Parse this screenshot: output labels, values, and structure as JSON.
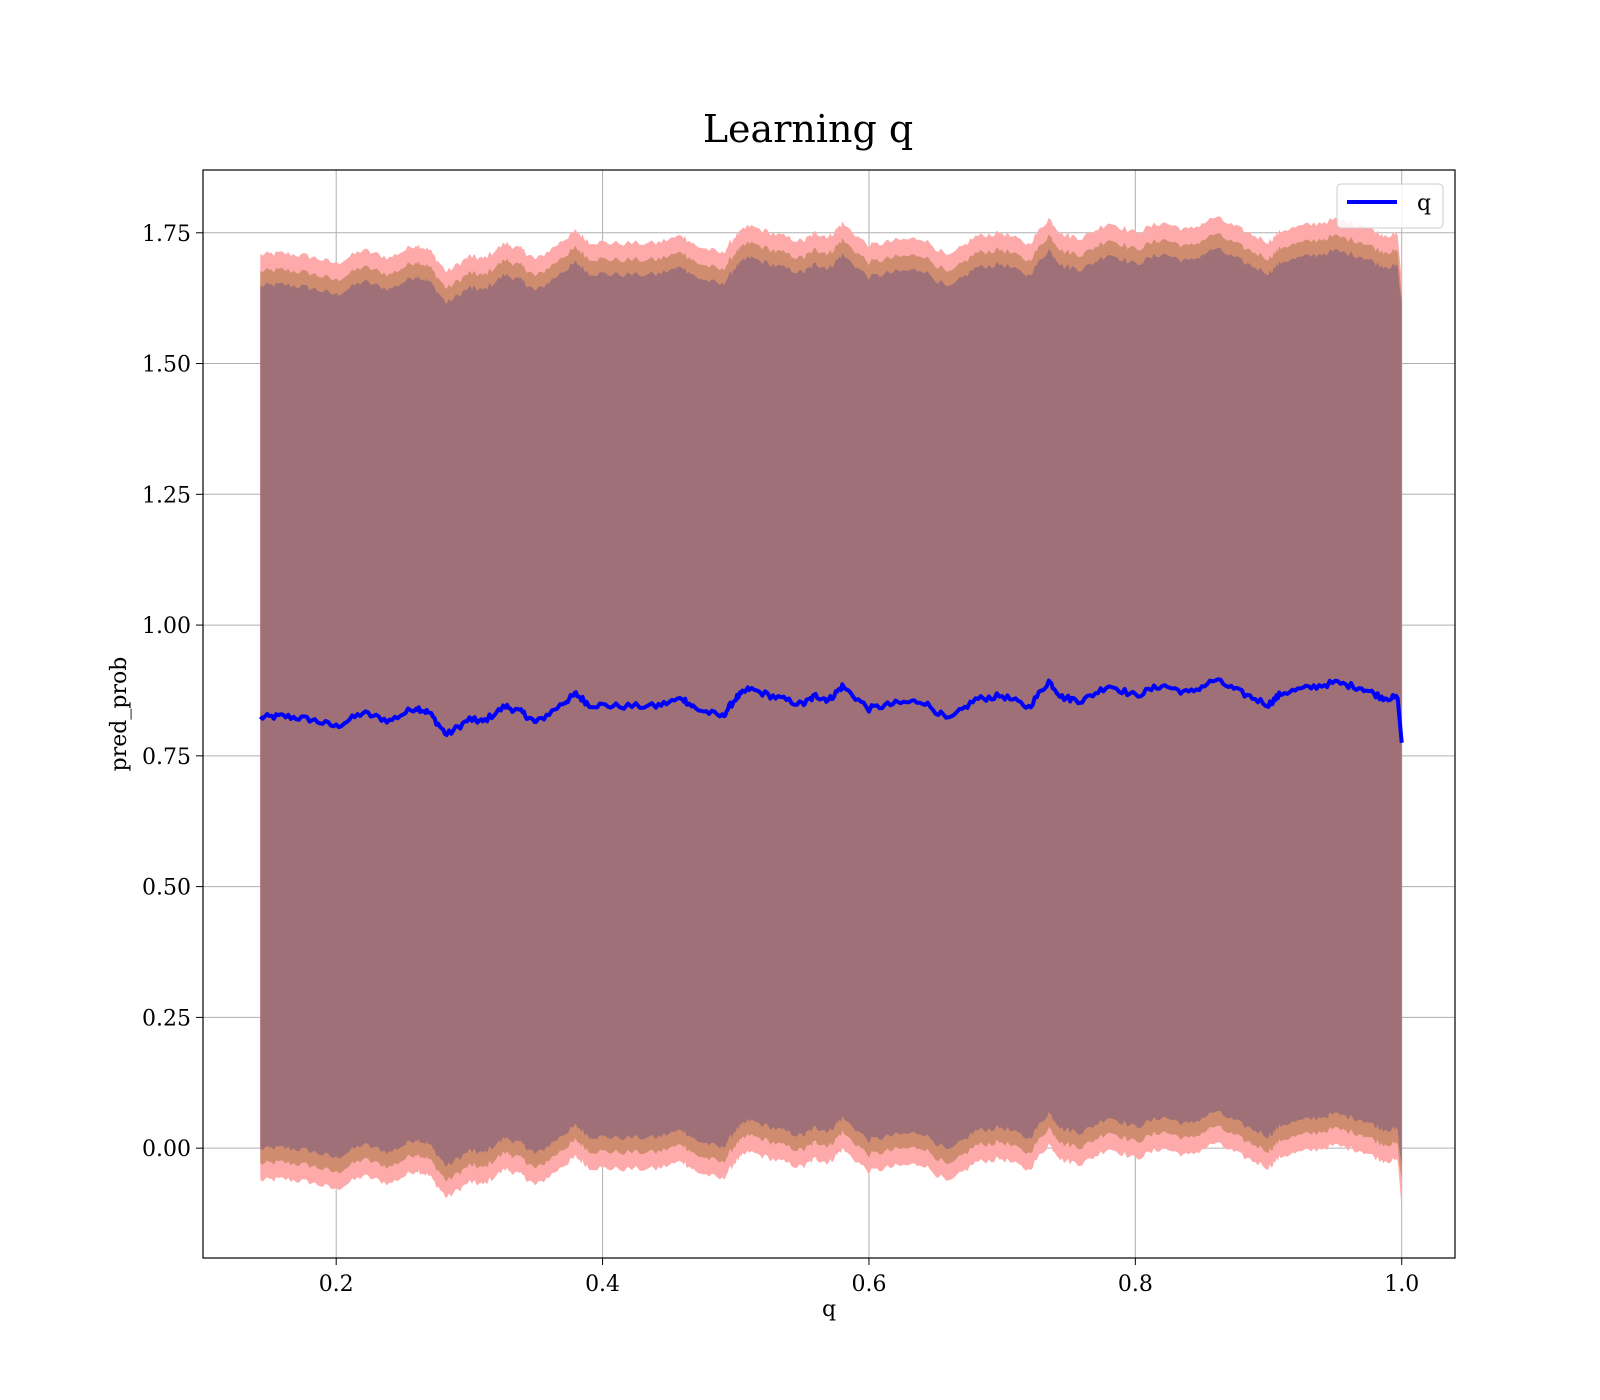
{
  "chart_data": {
    "type": "line",
    "title": "Learning q",
    "xlabel": "q",
    "ylabel": "pred_prob",
    "xlim": [
      0.1,
      1.04
    ],
    "ylim": [
      -0.21,
      1.87
    ],
    "xticks": [
      0.2,
      0.4,
      0.6,
      0.8,
      1.0
    ],
    "xtick_labels": [
      "0.2",
      "0.4",
      "0.6",
      "0.8",
      "1.0"
    ],
    "yticks": [
      0.0,
      0.25,
      0.5,
      0.75,
      1.0,
      1.25,
      1.5,
      1.75
    ],
    "ytick_labels": [
      "0.00",
      "0.25",
      "0.50",
      "0.75",
      "1.00",
      "1.25",
      "1.50",
      "1.75"
    ],
    "grid": true,
    "legend": {
      "placement": "top-right",
      "entries": [
        "q"
      ]
    },
    "colors": {
      "line": "#0000ff",
      "band_outer": "#ffaaaa",
      "band_middle": "#d08c6e",
      "band_inner": "#a07078",
      "grid": "#b0b0b0"
    },
    "series": [
      {
        "name": "q",
        "x": [
          0.143,
          0.16,
          0.18,
          0.2,
          0.22,
          0.24,
          0.26,
          0.27,
          0.283,
          0.3,
          0.31,
          0.327,
          0.34,
          0.35,
          0.37,
          0.38,
          0.39,
          0.41,
          0.44,
          0.46,
          0.47,
          0.49,
          0.5,
          0.51,
          0.53,
          0.55,
          0.56,
          0.57,
          0.58,
          0.6,
          0.62,
          0.64,
          0.66,
          0.68,
          0.7,
          0.72,
          0.735,
          0.745,
          0.76,
          0.78,
          0.8,
          0.82,
          0.84,
          0.86,
          0.88,
          0.9,
          0.91,
          0.93,
          0.95,
          0.97,
          0.985,
          0.997,
          1.0
        ],
        "y": [
          0.823,
          0.826,
          0.82,
          0.806,
          0.832,
          0.817,
          0.843,
          0.832,
          0.79,
          0.82,
          0.815,
          0.845,
          0.832,
          0.813,
          0.85,
          0.868,
          0.848,
          0.845,
          0.845,
          0.86,
          0.84,
          0.825,
          0.86,
          0.878,
          0.862,
          0.848,
          0.865,
          0.857,
          0.883,
          0.84,
          0.85,
          0.855,
          0.818,
          0.858,
          0.865,
          0.843,
          0.893,
          0.862,
          0.855,
          0.885,
          0.865,
          0.885,
          0.87,
          0.895,
          0.87,
          0.848,
          0.87,
          0.88,
          0.89,
          0.88,
          0.862,
          0.86,
          0.775
        ]
      }
    ],
    "bands": [
      {
        "name": "outer",
        "offset": 0.885,
        "end_low": -0.12
      },
      {
        "name": "middle",
        "offset": 0.853,
        "end_low": -0.06
      },
      {
        "name": "inner",
        "offset": 0.825,
        "end_low": -0.03
      }
    ]
  }
}
